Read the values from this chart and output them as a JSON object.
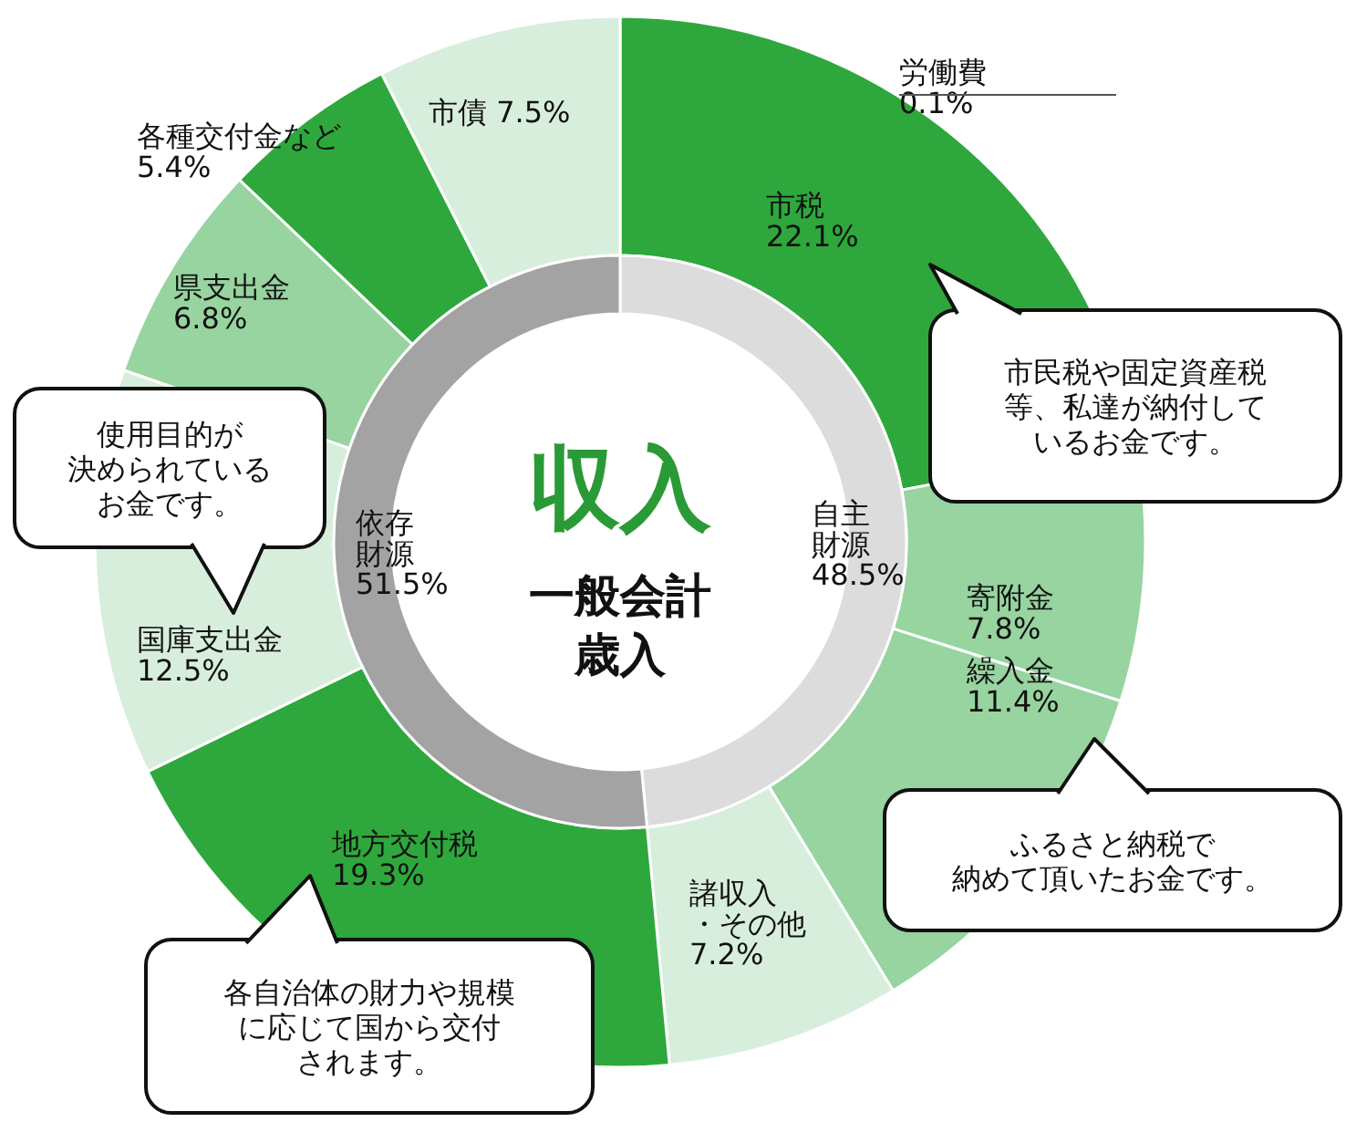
{
  "chart_data": [
    {
      "type": "donut",
      "categories": [
        "市税",
        "寄附金",
        "繰入金",
        "諸収入・その他",
        "地方交付税",
        "国庫支出金",
        "県支出金",
        "各種交付金など",
        "市債"
      ],
      "values": [
        22.1,
        7.8,
        11.4,
        7.2,
        19.3,
        12.5,
        6.8,
        5.4,
        7.5
      ],
      "value_labels": [
        "22.1%",
        "7.8%",
        "11.4%",
        "7.2%",
        "19.3%",
        "12.5%",
        "6.8%",
        "5.4%",
        "7.5%"
      ],
      "colors": [
        "#2ea83c",
        "#97d4a0",
        "#97d4a0",
        "#d8eedc",
        "#2ea83c",
        "#d8eedc",
        "#97d4a0",
        "#2ea83c",
        "#d8eedc"
      ],
      "annotations": [
        "市民税や固定資産税等、私達が納付しているお金です。",
        "使用目的が決められているお金です。",
        "ふるさと納税で納めて頂いたお金です。",
        "各自治体の財力や規模に応じて国から交付されます。",
        "労働費 0.1%"
      ]
    },
    {
      "type": "donut",
      "title": "収入",
      "subtitle": "一般会計歳入",
      "categories": [
        "自主財源",
        "依存財源"
      ],
      "values": [
        48.5,
        51.5
      ],
      "value_labels": [
        "48.5%",
        "51.5%"
      ],
      "colors": [
        "#dcdcdc",
        "#a3a3a3"
      ]
    }
  ]
}
